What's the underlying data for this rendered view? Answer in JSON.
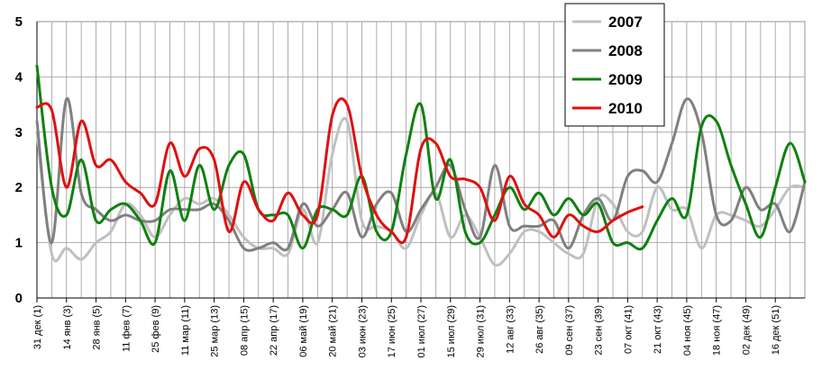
{
  "chart_data": {
    "type": "line",
    "title": "",
    "xlabel": "",
    "ylabel": "",
    "ylim": [
      0,
      5
    ],
    "yticks": [
      0,
      1,
      2,
      3,
      4,
      5
    ],
    "grid": true,
    "legend_position": "top-right",
    "x_count": 53,
    "x_tick_labels": [
      {
        "i": 0,
        "label": "31 дек (1)"
      },
      {
        "i": 2,
        "label": "14 янв (3)"
      },
      {
        "i": 4,
        "label": "28 янв (5)"
      },
      {
        "i": 6,
        "label": "11 фев (7)"
      },
      {
        "i": 8,
        "label": "25 фев (9)"
      },
      {
        "i": 10,
        "label": "11 мар (11)"
      },
      {
        "i": 12,
        "label": "25 мар (13)"
      },
      {
        "i": 14,
        "label": "08 апр (15)"
      },
      {
        "i": 16,
        "label": "22 апр (17)"
      },
      {
        "i": 18,
        "label": "06 май (19)"
      },
      {
        "i": 20,
        "label": "20 май (21)"
      },
      {
        "i": 22,
        "label": "03 июн (23)"
      },
      {
        "i": 24,
        "label": "17 июн (25)"
      },
      {
        "i": 26,
        "label": "01 июл (27)"
      },
      {
        "i": 28,
        "label": "15 июл (29)"
      },
      {
        "i": 30,
        "label": "29 июл (31)"
      },
      {
        "i": 32,
        "label": "12 авг (33)"
      },
      {
        "i": 34,
        "label": "26 авг (35)"
      },
      {
        "i": 36,
        "label": "09 сен (37)"
      },
      {
        "i": 38,
        "label": "23 сен (39)"
      },
      {
        "i": 40,
        "label": "07 окт (41)"
      },
      {
        "i": 42,
        "label": "21 окт (43)"
      },
      {
        "i": 44,
        "label": "04 ноя (45)"
      },
      {
        "i": 46,
        "label": "18 ноя (47)"
      },
      {
        "i": 48,
        "label": "02 дек (49)"
      },
      {
        "i": 50,
        "label": "16 дек (51)"
      }
    ],
    "series": [
      {
        "name": "2007",
        "color": "#c0c0c0",
        "values": [
          3.0,
          0.8,
          0.9,
          0.7,
          1.0,
          1.2,
          1.7,
          1.5,
          1.1,
          1.5,
          1.8,
          1.7,
          1.8,
          1.5,
          1.1,
          0.9,
          0.9,
          0.8,
          1.6,
          1.0,
          2.6,
          3.2,
          1.4,
          1.3,
          1.2,
          0.9,
          1.5,
          1.9,
          1.1,
          1.5,
          1.1,
          0.6,
          0.8,
          1.2,
          1.2,
          1.0,
          0.8,
          0.8,
          1.8,
          1.7,
          1.2,
          1.2,
          2.0,
          1.6,
          1.6,
          0.9,
          1.5,
          1.5,
          1.4,
          1.3,
          1.6,
          2.0,
          2.0
        ]
      },
      {
        "name": "2008",
        "color": "#808080",
        "values": [
          3.2,
          1.0,
          3.6,
          1.9,
          1.6,
          1.4,
          1.5,
          1.4,
          1.4,
          1.6,
          1.6,
          1.6,
          1.7,
          1.4,
          0.9,
          0.9,
          1.0,
          0.9,
          1.7,
          1.3,
          1.6,
          1.9,
          1.1,
          1.7,
          1.9,
          1.2,
          1.6,
          2.0,
          2.4,
          1.6,
          1.1,
          2.4,
          1.3,
          1.3,
          1.3,
          1.4,
          0.9,
          1.5,
          1.8,
          1.4,
          2.2,
          2.3,
          2.1,
          2.8,
          3.6,
          3.0,
          1.5,
          1.4,
          2.0,
          1.6,
          1.7,
          1.2,
          2.1
        ]
      },
      {
        "name": "2009",
        "color": "#108010",
        "values": [
          4.2,
          2.0,
          1.5,
          2.5,
          1.4,
          1.6,
          1.7,
          1.4,
          1.0,
          2.3,
          1.4,
          2.4,
          1.6,
          2.4,
          2.6,
          1.6,
          1.5,
          1.5,
          0.9,
          1.6,
          1.6,
          1.5,
          2.2,
          1.2,
          1.2,
          2.6,
          3.5,
          1.8,
          2.5,
          1.2,
          1.0,
          1.5,
          2.0,
          1.6,
          1.9,
          1.5,
          1.8,
          1.5,
          1.7,
          1.0,
          1.0,
          0.9,
          1.4,
          1.8,
          1.5,
          3.1,
          3.2,
          2.4,
          1.7,
          1.1,
          2.0,
          2.8,
          2.1
        ]
      },
      {
        "name": "2010",
        "color": "#e01010",
        "values": [
          3.45,
          3.4,
          2.0,
          3.2,
          2.4,
          2.5,
          2.1,
          1.9,
          1.7,
          2.8,
          2.2,
          2.7,
          2.5,
          1.2,
          2.1,
          1.6,
          1.4,
          1.9,
          1.5,
          1.5,
          3.3,
          3.5,
          2.2,
          1.5,
          1.2,
          1.1,
          2.7,
          2.8,
          2.2,
          2.15,
          2.0,
          1.4,
          2.2,
          1.7,
          1.5,
          1.1,
          1.5,
          1.3,
          1.2,
          1.4,
          1.55,
          1.65,
          null,
          null,
          null,
          null,
          null,
          null,
          null,
          null,
          null,
          null,
          null
        ]
      }
    ]
  }
}
